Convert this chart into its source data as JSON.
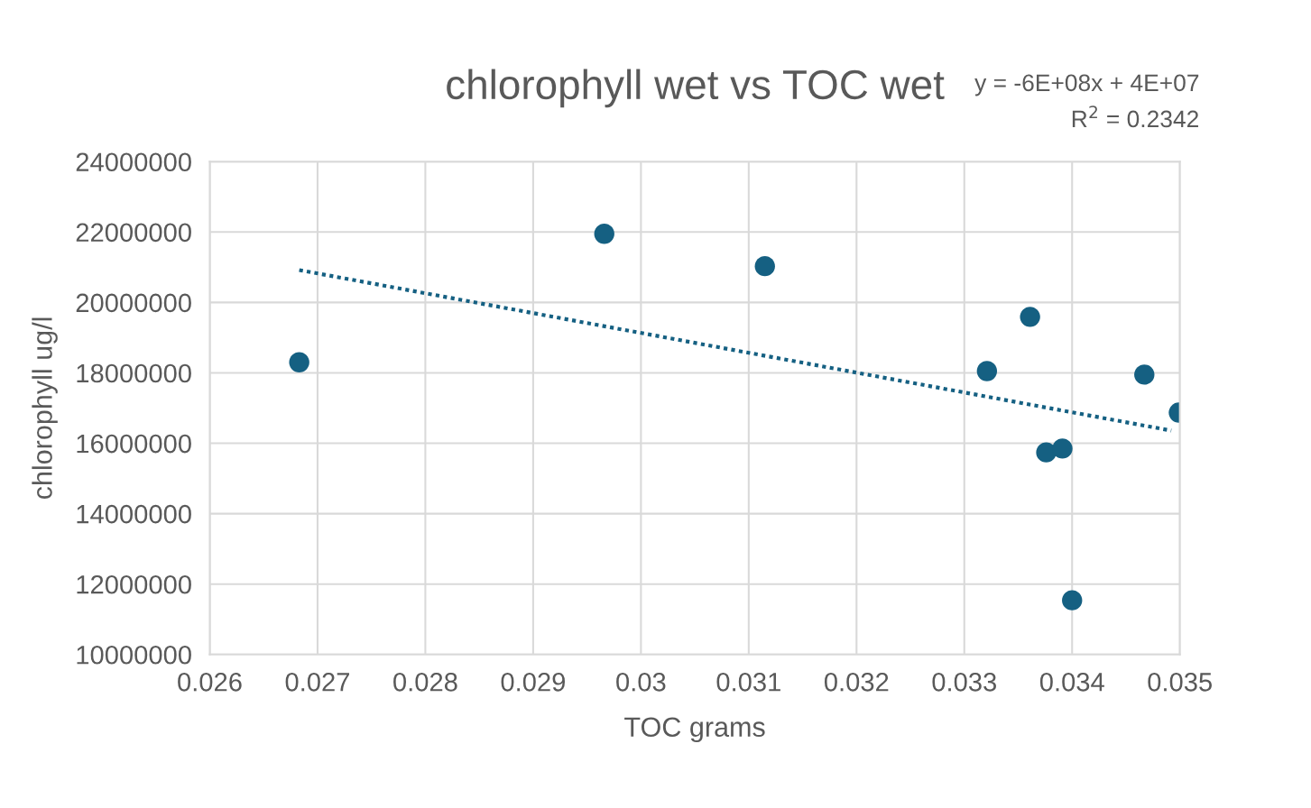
{
  "chart_data": {
    "type": "scatter",
    "title": "chlorophyll wet vs TOC wet",
    "xlabel": "TOC grams",
    "ylabel": "chlorophyll ug/l",
    "annotations": [
      "y = -6E+08x + 4E+07",
      "R$^{2}$ = 0.2342"
    ],
    "series": [
      {
        "color": "#156082",
        "marker": "circle",
        "x": [
          0.02683,
          0.02966,
          0.03115,
          0.03361,
          0.03321,
          0.03376,
          0.03391,
          0.034,
          0.03467,
          0.03499
        ],
        "values": [
          18300000,
          21950000,
          21030000,
          19590000,
          18050000,
          15740000,
          15850000,
          11540000,
          17950000,
          16870000
        ]
      },
      {
        "type": "line",
        "color": "#156082",
        "line_style": "dotted",
        "marker": "none",
        "x": [
          0.02683,
          0.03492
        ],
        "values": [
          20920000,
          16360000
        ]
      }
    ],
    "xlim": [
      0.026,
      0.035
    ],
    "xticks": [
      0.026,
      0.027,
      0.028,
      0.029,
      0.03,
      0.031,
      0.032,
      0.033,
      0.034,
      0.035
    ],
    "ylim": [
      10000000,
      24000000
    ],
    "yticks": [
      10000000,
      12000000,
      14000000,
      16000000,
      18000000,
      20000000,
      22000000,
      24000000
    ],
    "grid": true,
    "legend": false
  }
}
